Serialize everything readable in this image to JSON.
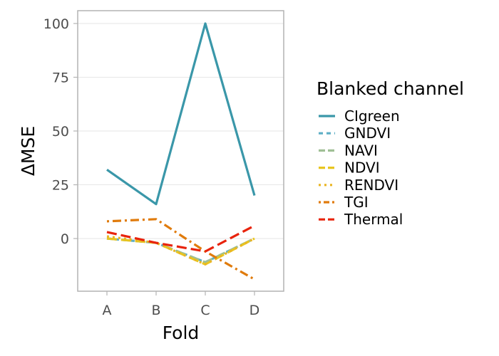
{
  "chart_data": {
    "type": "line",
    "categories": [
      "A",
      "B",
      "C",
      "D"
    ],
    "xlabel": "Fold",
    "ylabel": "ΔMSE",
    "ylim": [
      -25,
      105
    ],
    "yticks": [
      0,
      25,
      50,
      75,
      100
    ],
    "grid": true,
    "legend": {
      "title": "Blanked channel",
      "placement": "right"
    },
    "series": [
      {
        "name": "CIgreen",
        "values": [
          32,
          16,
          100,
          20
        ],
        "color": "#3a97a9",
        "dash": "solid"
      },
      {
        "name": "GNDVI",
        "values": [
          0,
          -2,
          -11,
          0
        ],
        "color": "#5dafc6",
        "dash": "dashed"
      },
      {
        "name": "NAVI",
        "values": [
          0,
          -2,
          -11,
          0
        ],
        "color": "#9fbf95",
        "dash": "longdash"
      },
      {
        "name": "NDVI",
        "values": [
          0,
          -2,
          -12,
          0
        ],
        "color": "#e8c520",
        "dash": "longdash"
      },
      {
        "name": "RENDVI",
        "values": [
          1,
          -2,
          -12,
          0
        ],
        "color": "#eab522",
        "dash": "dotted"
      },
      {
        "name": "TGI",
        "values": [
          8,
          9,
          -6,
          -19
        ],
        "color": "#e07b0c",
        "dash": "dotdash"
      },
      {
        "name": "Thermal",
        "values": [
          3,
          -2,
          -6,
          6
        ],
        "color": "#e8230c",
        "dash": "longdash"
      }
    ]
  }
}
